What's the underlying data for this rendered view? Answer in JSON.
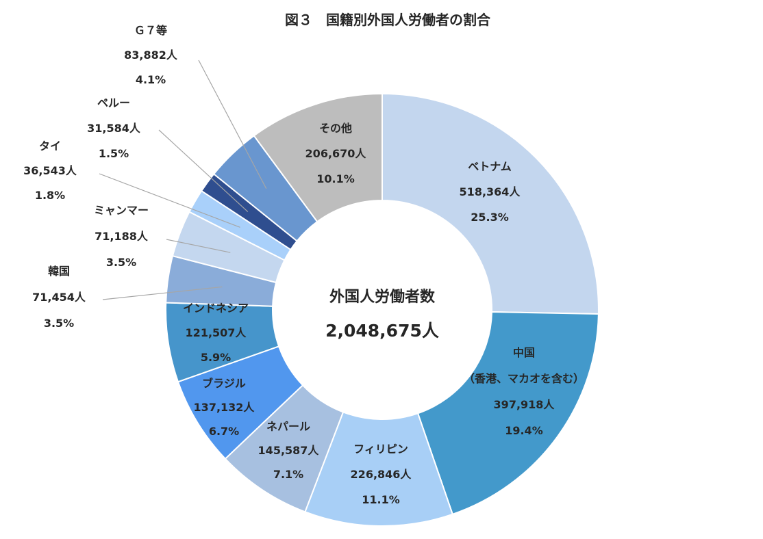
{
  "chart_data": {
    "type": "pie",
    "donut": true,
    "title": "図３　国籍別外国人労働者の割合",
    "center_label": "外国人労働者数",
    "center_value": "2,048,675人",
    "legend": "none",
    "slices": [
      {
        "name": "ベトナム",
        "count_label": "518,364人",
        "value": 518364,
        "percent": "25.3%",
        "color": "#c3d6ee"
      },
      {
        "name": "中国",
        "name2": "（香港、マカオを含む）",
        "count_label": "397,918人",
        "value": 397918,
        "percent": "19.4%",
        "color": "#4399cb"
      },
      {
        "name": "フィリピン",
        "count_label": "226,846人",
        "value": 226846,
        "percent": "11.1%",
        "color": "#a8cff6"
      },
      {
        "name": "ネパール",
        "count_label": "145,587人",
        "value": 145587,
        "percent": "7.1%",
        "color": "#a7c0e0"
      },
      {
        "name": "ブラジル",
        "count_label": "137,132人",
        "value": 137132,
        "percent": "6.7%",
        "color": "#5197ee"
      },
      {
        "name": "インドネシア",
        "count_label": "121,507人",
        "value": 121507,
        "percent": "5.9%",
        "color": "#4695cb"
      },
      {
        "name": "韓国",
        "count_label": "71,454人",
        "value": 71454,
        "percent": "3.5%",
        "color": "#8aacd9"
      },
      {
        "name": "ミャンマー",
        "count_label": "71,188人",
        "value": 71188,
        "percent": "3.5%",
        "color": "#c4d7ef"
      },
      {
        "name": "タイ",
        "count_label": "36,543人",
        "value": 36543,
        "percent": "1.8%",
        "color": "#a9d0fa"
      },
      {
        "name": "ペルー",
        "count_label": "31,584人",
        "value": 31584,
        "percent": "1.5%",
        "color": "#2f4e8f"
      },
      {
        "name": "Ｇ７等",
        "count_label": "83,882人",
        "value": 83882,
        "percent": "4.1%",
        "color": "#6996cf"
      },
      {
        "name": "その他",
        "count_label": "206,670人",
        "value": 206670,
        "percent": "10.1%",
        "color": "#bdbdbd"
      }
    ]
  }
}
